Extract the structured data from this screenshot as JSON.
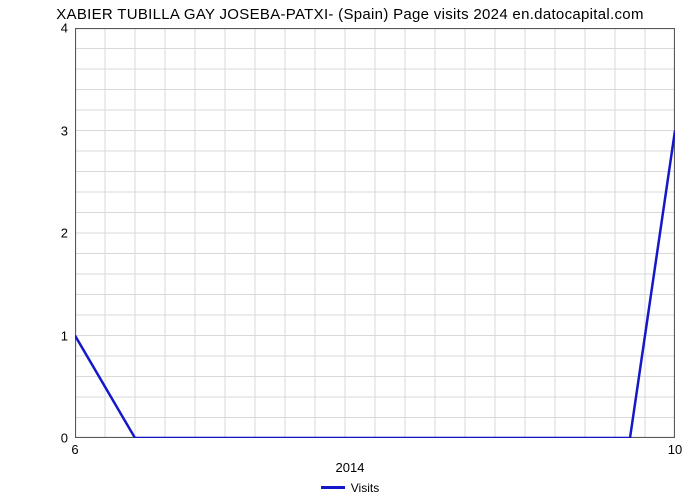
{
  "chart": {
    "type": "line",
    "title": "XABIER TUBILLA GAY JOSEBA-PATXI- (Spain) Page visits 2024 en.datocapital.com",
    "title_fontsize": 15,
    "title_color": "#000000",
    "background_color": "#ffffff",
    "grid_color": "#d9d9d9",
    "border_color": "#595959",
    "line_color": "#1418c8",
    "line_width": 2.5,
    "xlim": [
      6,
      10
    ],
    "ylim": [
      0,
      4
    ],
    "x_ticks_labeled": [
      6,
      10
    ],
    "y_ticks": [
      0,
      1,
      2,
      3,
      4
    ],
    "x_grid_minor_step": 0.2,
    "y_grid_minor_step": 0.2,
    "xlabel": "2014",
    "xlabel_fontsize": 13,
    "label_fontsize": 13,
    "legend": {
      "label": "Visits",
      "color": "#1418c8",
      "fontsize": 12
    },
    "series": {
      "x": [
        6,
        6.4,
        9.7,
        10
      ],
      "y": [
        1,
        0,
        0,
        3
      ]
    }
  }
}
